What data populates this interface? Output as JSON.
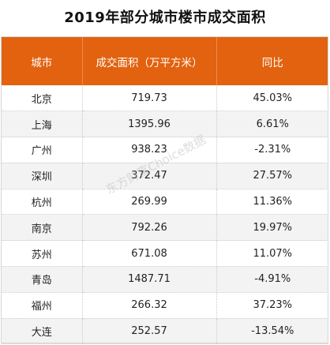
{
  "title": "2019年部分城市楼市成交面积",
  "table": {
    "headers": [
      "城市",
      "成交面积（万平方米）",
      "同比"
    ],
    "rows": [
      {
        "city": "北京",
        "area": "719.73",
        "yoy": "45.03%"
      },
      {
        "city": "上海",
        "area": "1395.96",
        "yoy": "6.61%"
      },
      {
        "city": "广州",
        "area": "938.23",
        "yoy": "-2.31%"
      },
      {
        "city": "深圳",
        "area": "372.47",
        "yoy": "27.57%"
      },
      {
        "city": "杭州",
        "area": "269.99",
        "yoy": "11.36%"
      },
      {
        "city": "南京",
        "area": "792.26",
        "yoy": "19.97%"
      },
      {
        "city": "苏州",
        "area": "671.08",
        "yoy": "11.07%"
      },
      {
        "city": "青岛",
        "area": "1487.71",
        "yoy": "-4.91%"
      },
      {
        "city": "福州",
        "area": "266.32",
        "yoy": "37.23%"
      },
      {
        "city": "大连",
        "area": "252.57",
        "yoy": "-13.54%"
      }
    ]
  },
  "watermark": "东方财富Choice数据",
  "colors": {
    "header_bg": "#e2620f",
    "header_text": "#ffffff",
    "alt_row_bg": "#f3f3f3"
  }
}
